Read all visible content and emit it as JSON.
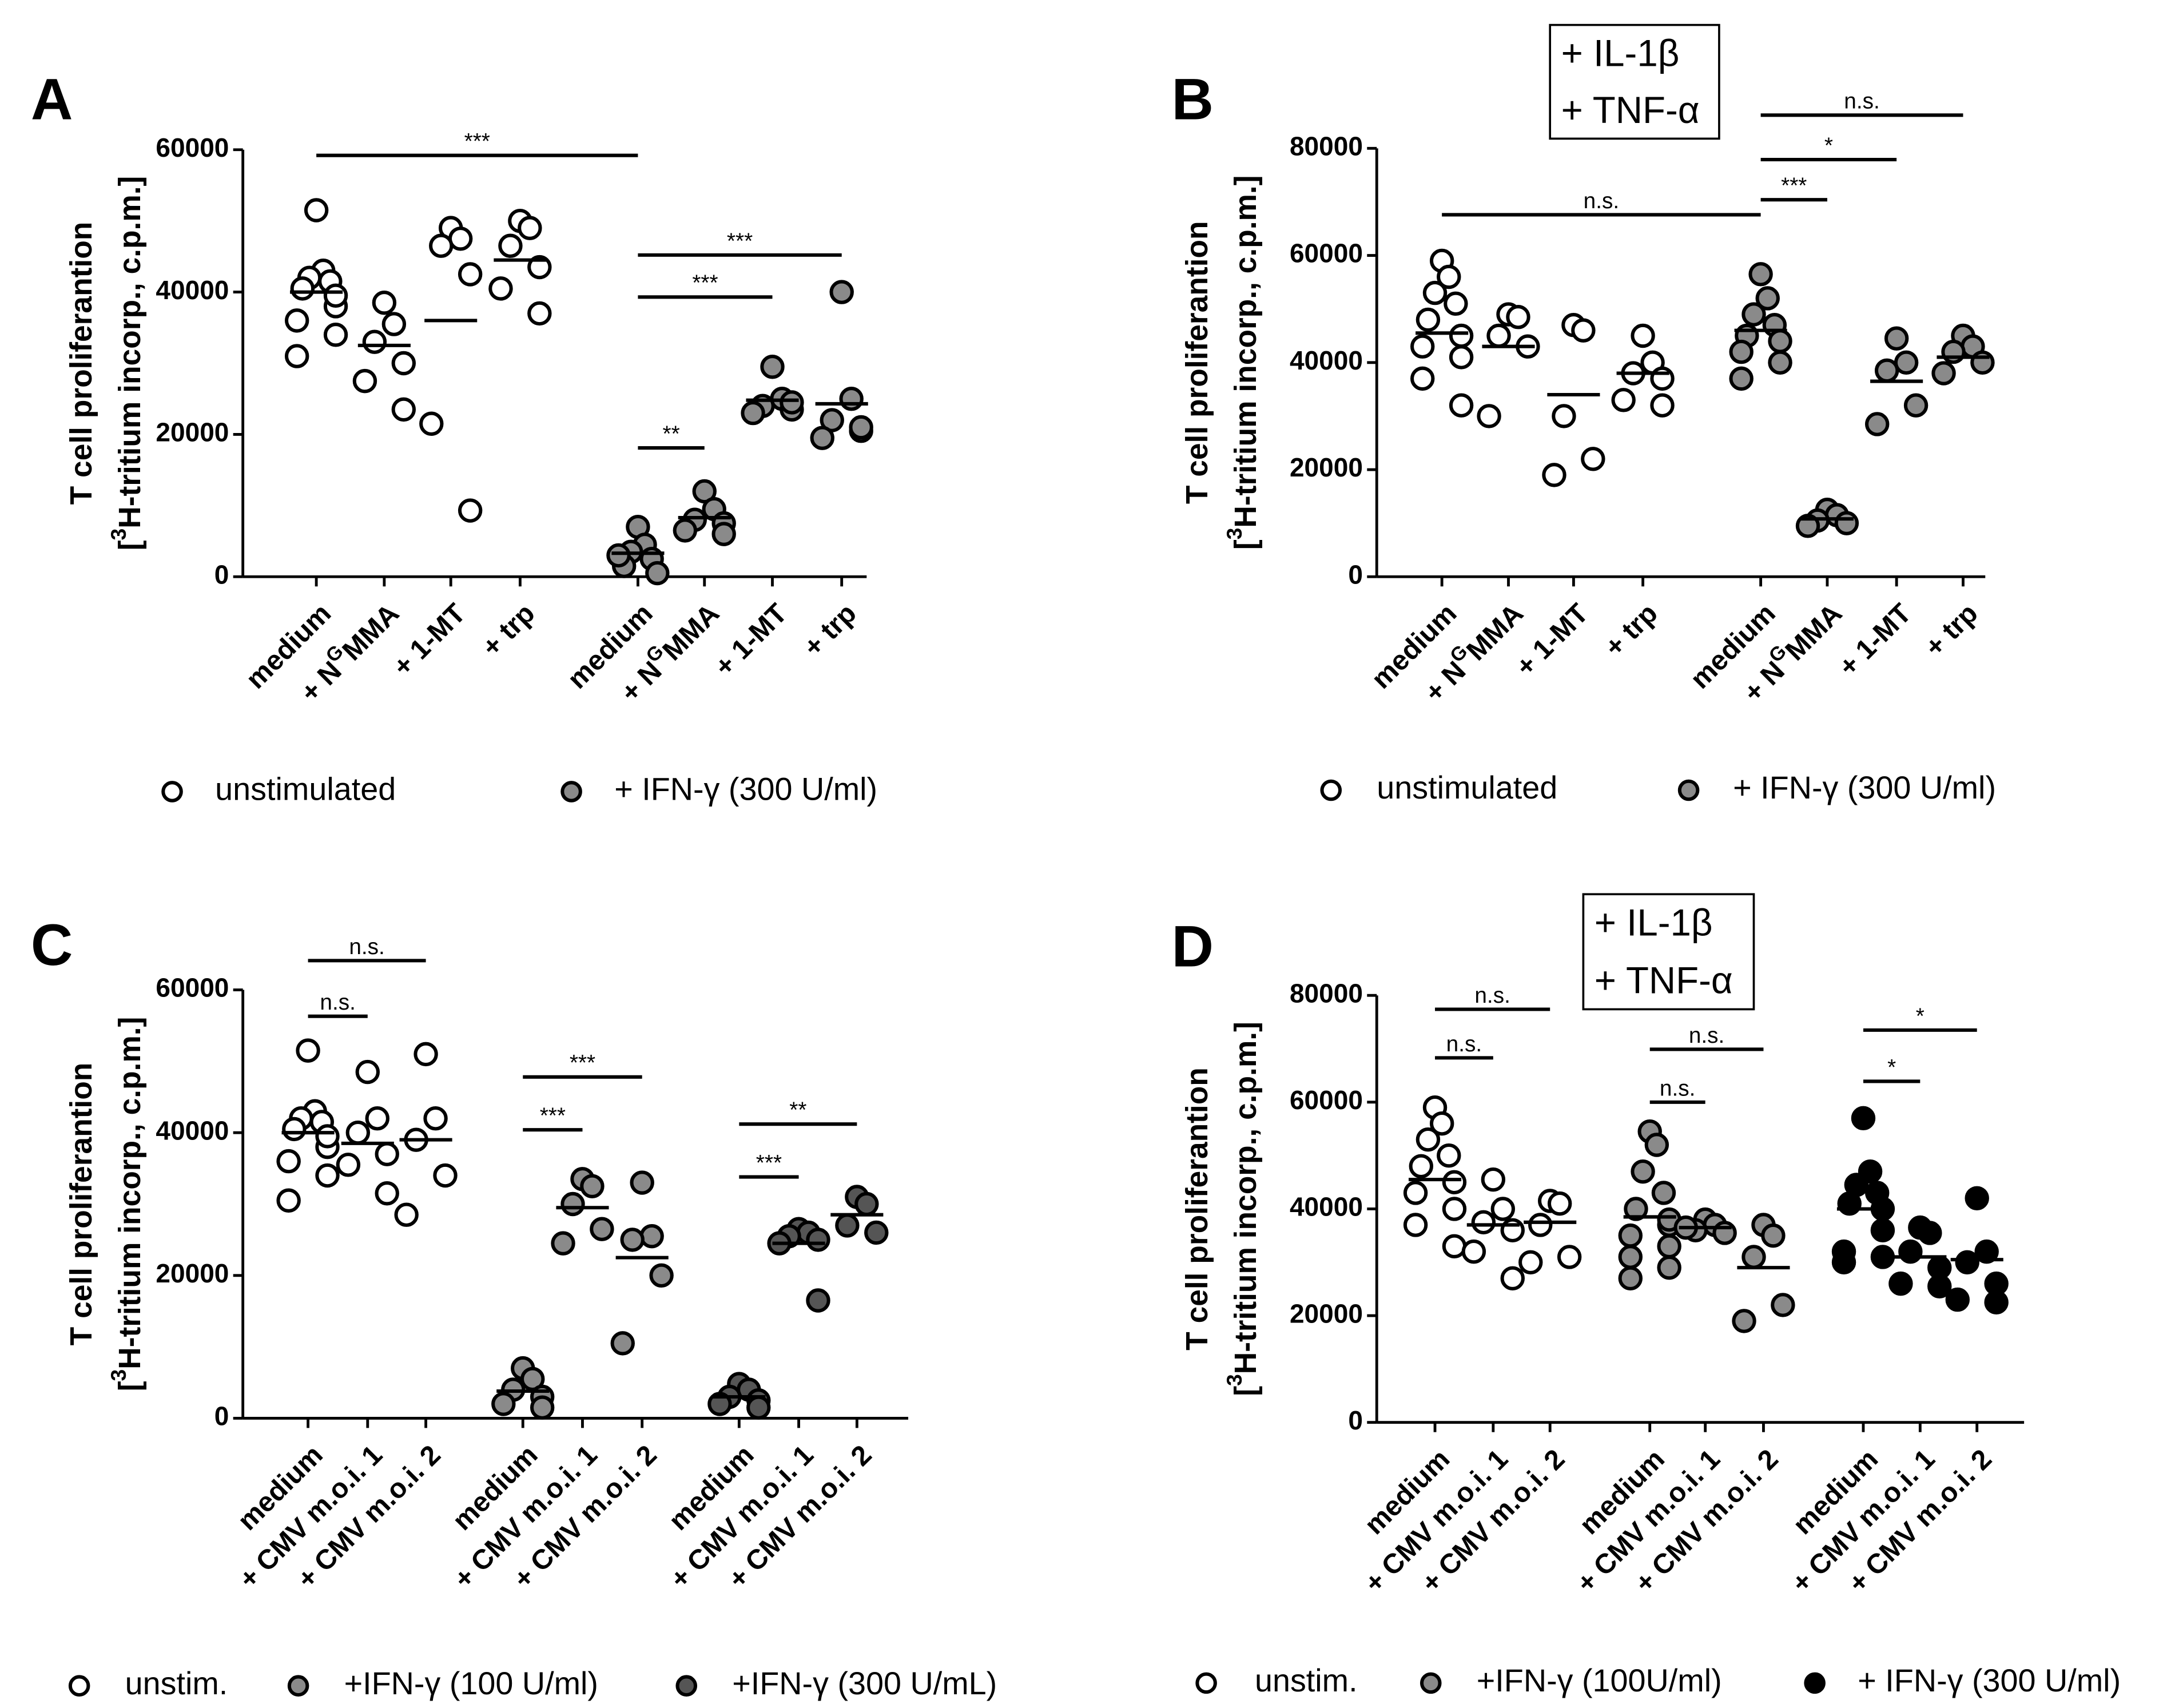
{
  "chart_data": [
    {
      "type": "strip",
      "panel": "A",
      "ylabel": [
        "T cell proliferantion",
        {
          "pre": "[",
          "sup": "3",
          "post": "H-tritium incorp., c.p.m.]"
        }
      ],
      "ylim": [
        0,
        60000
      ],
      "yticks": [
        0,
        20000,
        40000,
        60000
      ],
      "categories": [
        "medium",
        {
          "pre": "+ N",
          "sup": "G",
          "post": "MMA"
        },
        "+ 1-MT",
        "+ trp",
        "medium",
        {
          "pre": "+ N",
          "sup": "G",
          "post": "MMA"
        },
        "+ 1-MT",
        "+ trp"
      ],
      "column_series": [
        0,
        0,
        0,
        0,
        1,
        1,
        1,
        1
      ],
      "points": [
        [
          51500,
          43000,
          42000,
          41500,
          40500,
          38000,
          36000,
          34000,
          31000,
          39500
        ],
        [
          38500,
          35500,
          33000,
          30000,
          27500,
          23500
        ],
        [
          49000,
          47500,
          46500,
          42500,
          21500,
          9300
        ],
        [
          50000,
          49000,
          46500,
          43500,
          40500,
          37000
        ],
        [
          7000,
          4500,
          3500,
          2500,
          1500,
          500,
          3000
        ],
        [
          12000,
          9500,
          8000,
          7500,
          6500,
          6000
        ],
        [
          29500,
          25000,
          24000,
          23500,
          23000,
          24500
        ],
        [
          40000,
          25000,
          22000,
          20500,
          19500,
          21000
        ]
      ],
      "means": [
        40000,
        32500,
        36000,
        44500,
        3300,
        8300,
        24800,
        24300
      ],
      "significance": [
        {
          "from": 0,
          "to": 4,
          "y": 59200,
          "label": "***"
        },
        {
          "from": 4,
          "to": 5,
          "y": 18100,
          "label": "**"
        },
        {
          "from": 4,
          "to": 6,
          "y": 39300,
          "label": "***"
        },
        {
          "from": 4,
          "to": 7,
          "y": 45200,
          "label": "***"
        }
      ],
      "series": [
        {
          "name": "unstimulated",
          "color": "#ffffff"
        },
        {
          "name": "+ IFN-γ (300 U/ml)",
          "color": "#8a8a8a"
        }
      ]
    },
    {
      "type": "strip",
      "panel": "B",
      "box": [
        "+ IL-1β",
        "+ TNF-α"
      ],
      "ylabel": [
        "T cell proliferantion",
        {
          "pre": "[",
          "sup": "3",
          "post": "H-tritium incorp., c.p.m.]"
        }
      ],
      "ylim": [
        0,
        80000
      ],
      "yticks": [
        0,
        20000,
        40000,
        60000,
        80000
      ],
      "categories": [
        "medium",
        {
          "pre": "+ N",
          "sup": "G",
          "post": "MMA"
        },
        "+ 1-MT",
        "+ trp",
        "medium",
        {
          "pre": "+ N",
          "sup": "G",
          "post": "MMA"
        },
        "+ 1-MT",
        "+ trp"
      ],
      "column_series": [
        0,
        0,
        0,
        0,
        1,
        1,
        1,
        1
      ],
      "points": [
        [
          59000,
          56000,
          53000,
          51000,
          48000,
          45000,
          43000,
          41000,
          37000,
          32000
        ],
        [
          49000,
          48500,
          45000,
          43000,
          30000
        ],
        [
          47000,
          46000,
          30000,
          22000,
          19000
        ],
        [
          45000,
          40000,
          38000,
          37000,
          33000,
          32000
        ],
        [
          56500,
          52000,
          49000,
          47000,
          45000,
          44000,
          42000,
          40000,
          37000
        ],
        [
          12500,
          11500,
          10500,
          10000,
          9500
        ],
        [
          44500,
          40000,
          38500,
          32000,
          28500
        ],
        [
          45000,
          43000,
          42000,
          40000,
          38000
        ]
      ],
      "means": [
        45500,
        43000,
        34000,
        38000,
        46000,
        10800,
        36500,
        41000
      ],
      "significance": [
        {
          "from": 0,
          "to": 4,
          "y": 67600,
          "label": "n.s."
        },
        {
          "from": 4,
          "to": 5,
          "y": 70400,
          "label": "***"
        },
        {
          "from": 4,
          "to": 6,
          "y": 77900,
          "label": "*"
        },
        {
          "from": 4,
          "to": 7,
          "y": 86200,
          "label": "n.s."
        }
      ],
      "series": [
        {
          "name": "unstimulated",
          "color": "#ffffff"
        },
        {
          "name": "+ IFN-γ (300 U/ml)",
          "color": "#8a8a8a"
        }
      ]
    },
    {
      "type": "strip",
      "panel": "C",
      "ylabel": [
        "T cell proliferantion",
        {
          "pre": "[",
          "sup": "3",
          "post": "H-tritium incorp., c.p.m.]"
        }
      ],
      "ylim": [
        0,
        60000
      ],
      "yticks": [
        0,
        20000,
        40000,
        60000
      ],
      "categories": [
        "medium",
        "+ CMV m.o.i. 1",
        "+ CMV m.o.i. 2",
        "medium",
        "+ CMV m.o.i. 1",
        "+ CMV m.o.i. 2",
        "medium",
        "+ CMV m.o.i. 1",
        "+ CMV m.o.i. 2"
      ],
      "column_series": [
        0,
        0,
        0,
        1,
        1,
        1,
        2,
        2,
        2
      ],
      "points": [
        [
          51500,
          43000,
          42000,
          41500,
          40500,
          38000,
          36000,
          34000,
          30500,
          39500
        ],
        [
          48500,
          42000,
          40000,
          37000,
          35500,
          31500
        ],
        [
          51000,
          42000,
          39000,
          34000,
          28500
        ],
        [
          7000,
          5500,
          4000,
          3000,
          2000,
          1500
        ],
        [
          33500,
          32500,
          30000,
          26500,
          24500
        ],
        [
          33000,
          25500,
          25000,
          20000,
          10500
        ],
        [
          4800,
          4000,
          3000,
          2500,
          2000,
          1500
        ],
        [
          26500,
          26000,
          25500,
          25000,
          24500,
          16500
        ],
        [
          31000,
          30000,
          27000,
          26000
        ]
      ],
      "means": [
        40000,
        38500,
        39000,
        3800,
        29500,
        22500,
        3000,
        24500,
        28500
      ],
      "significance": [
        {
          "from": 0,
          "to": 1,
          "y": 56300,
          "label": "n.s."
        },
        {
          "from": 0,
          "to": 2,
          "y": 64100,
          "label": "n.s."
        },
        {
          "from": 3,
          "to": 4,
          "y": 40400,
          "label": "***"
        },
        {
          "from": 3,
          "to": 5,
          "y": 47800,
          "label": "***"
        },
        {
          "from": 6,
          "to": 7,
          "y": 33800,
          "label": "***"
        },
        {
          "from": 6,
          "to": 8,
          "y": 41200,
          "label": "**"
        }
      ],
      "series": [
        {
          "name": "unstim.",
          "color": "#ffffff"
        },
        {
          "name": "+IFN-γ (100 U/ml)",
          "color": "#8a8a8a"
        },
        {
          "name": "+IFN-γ (300 U/mL)",
          "color": "#555555"
        }
      ]
    },
    {
      "type": "strip",
      "panel": "D",
      "box": [
        "+ IL-1β",
        "+ TNF-α"
      ],
      "ylabel": [
        "T cell proliferantion",
        {
          "pre": "[",
          "sup": "3",
          "post": "H-tritium incorp., c.p.m.]"
        }
      ],
      "ylim": [
        0,
        80000
      ],
      "yticks": [
        0,
        20000,
        40000,
        60000,
        80000
      ],
      "categories": [
        "medium",
        "+ CMV m.o.i. 1",
        "+ CMV m.o.i. 2",
        "medium",
        "+ CMV m.o.i. 1",
        "+ CMV m.o.i. 2",
        "medium",
        "+ CMV m.o.i. 1",
        "+ CMV m.o.i. 2"
      ],
      "column_series": [
        0,
        0,
        0,
        1,
        1,
        1,
        2,
        2,
        2
      ],
      "points": [
        [
          59000,
          56000,
          53000,
          50000,
          48000,
          45000,
          43000,
          40000,
          37000,
          33000
        ],
        [
          45500,
          40000,
          37500,
          36000,
          32000,
          27000
        ],
        [
          41500,
          41000,
          37000,
          31000,
          30000
        ],
        [
          54500,
          52000,
          47000,
          43000,
          40000,
          37000,
          35000,
          33000,
          31000,
          29000,
          27000,
          38000
        ],
        [
          38000,
          37000,
          36000,
          35500,
          36500
        ],
        [
          37000,
          35000,
          31000,
          22000,
          19000
        ],
        [
          57000,
          47000,
          44500,
          43000,
          41000,
          36000,
          32000,
          31000,
          30000,
          40000
        ],
        [
          36500,
          35500,
          32000,
          29000,
          26000,
          25500
        ],
        [
          42000,
          32000,
          30000,
          26000,
          23000,
          22500
        ]
      ],
      "means": [
        45500,
        37000,
        37500,
        38500,
        36500,
        29000,
        40000,
        31000,
        30500
      ],
      "significance": [
        {
          "from": 0,
          "to": 1,
          "y": 68300,
          "label": "n.s."
        },
        {
          "from": 0,
          "to": 2,
          "y": 77400,
          "label": "n.s."
        },
        {
          "from": 3,
          "to": 4,
          "y": 60000,
          "label": "n.s."
        },
        {
          "from": 3,
          "to": 5,
          "y": 69900,
          "label": "n.s."
        },
        {
          "from": 6,
          "to": 7,
          "y": 63900,
          "label": "*"
        },
        {
          "from": 6,
          "to": 8,
          "y": 73500,
          "label": "*"
        }
      ],
      "series": [
        {
          "name": "unstim.",
          "color": "#ffffff"
        },
        {
          "name": "+IFN-γ (100U/ml)",
          "color": "#8a8a8a"
        },
        {
          "name": "+ IFN-γ (300 U/ml)",
          "color": "#000000"
        }
      ]
    }
  ]
}
